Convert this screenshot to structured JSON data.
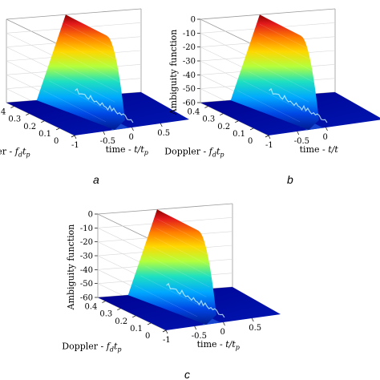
{
  "chart_data": [
    {
      "panel_letter": "a",
      "type": "surface",
      "zlabel": "",
      "xlabel_main": "time - ",
      "xlabel_var": "t",
      "xlabel_sub": "p",
      "ylabel_main": "Doppler - ",
      "ylabel_var": "f",
      "ylabel_sub1": "d",
      "ylabel_var2": "t",
      "ylabel_sub2": "p",
      "x_ticks": [
        "-1",
        "-0.5",
        "0",
        "0.5"
      ],
      "y_ticks": [
        "0.4",
        "0.3",
        "0.2",
        "0.1",
        "0"
      ],
      "z_ticks": [],
      "xlim": [
        -1,
        1
      ],
      "ylim": [
        0,
        0.45
      ],
      "zlim": [
        -60,
        0
      ],
      "show_axis_labels": true,
      "floor_noise": "moderate"
    },
    {
      "panel_letter": "b",
      "type": "surface",
      "zlabel": "Ambiguity function",
      "xlabel_main": "time - ",
      "xlabel_var": "t",
      "xlabel_sub": "",
      "ylabel_main": "Doppler - ",
      "ylabel_var": "f",
      "ylabel_sub1": "d",
      "ylabel_var2": "t",
      "ylabel_sub2": "p",
      "x_ticks": [
        "-1",
        "-0.5",
        "0"
      ],
      "y_ticks": [
        "0.4",
        "0.3",
        "0.2",
        "0.1",
        "0"
      ],
      "z_ticks": [
        "0",
        "-10",
        "-20",
        "-30",
        "-40",
        "-50",
        "-60"
      ],
      "xlim": [
        -1,
        1
      ],
      "ylim": [
        0,
        0.45
      ],
      "zlim": [
        -60,
        0
      ],
      "show_axis_labels": true,
      "floor_noise": "low"
    },
    {
      "panel_letter": "c",
      "type": "surface",
      "zlabel": "Ambiguity function",
      "xlabel_main": "time - ",
      "xlabel_var": "t",
      "xlabel_sub": "p",
      "ylabel_main": "Doppler - ",
      "ylabel_var": "f",
      "ylabel_sub1": "d",
      "ylabel_var2": "t",
      "ylabel_sub2": "p",
      "x_ticks": [
        "-1",
        "-0.5",
        "0",
        "0.5"
      ],
      "y_ticks": [
        "0.4",
        "0.3",
        "0.2",
        "0.1",
        "0"
      ],
      "z_ticks": [
        "0",
        "-10",
        "-20",
        "-30",
        "-40",
        "-50",
        "-60"
      ],
      "xlim": [
        -1,
        1
      ],
      "ylim": [
        0,
        0.45
      ],
      "zlim": [
        -60,
        0
      ],
      "show_axis_labels": true,
      "floor_noise": "high"
    }
  ]
}
